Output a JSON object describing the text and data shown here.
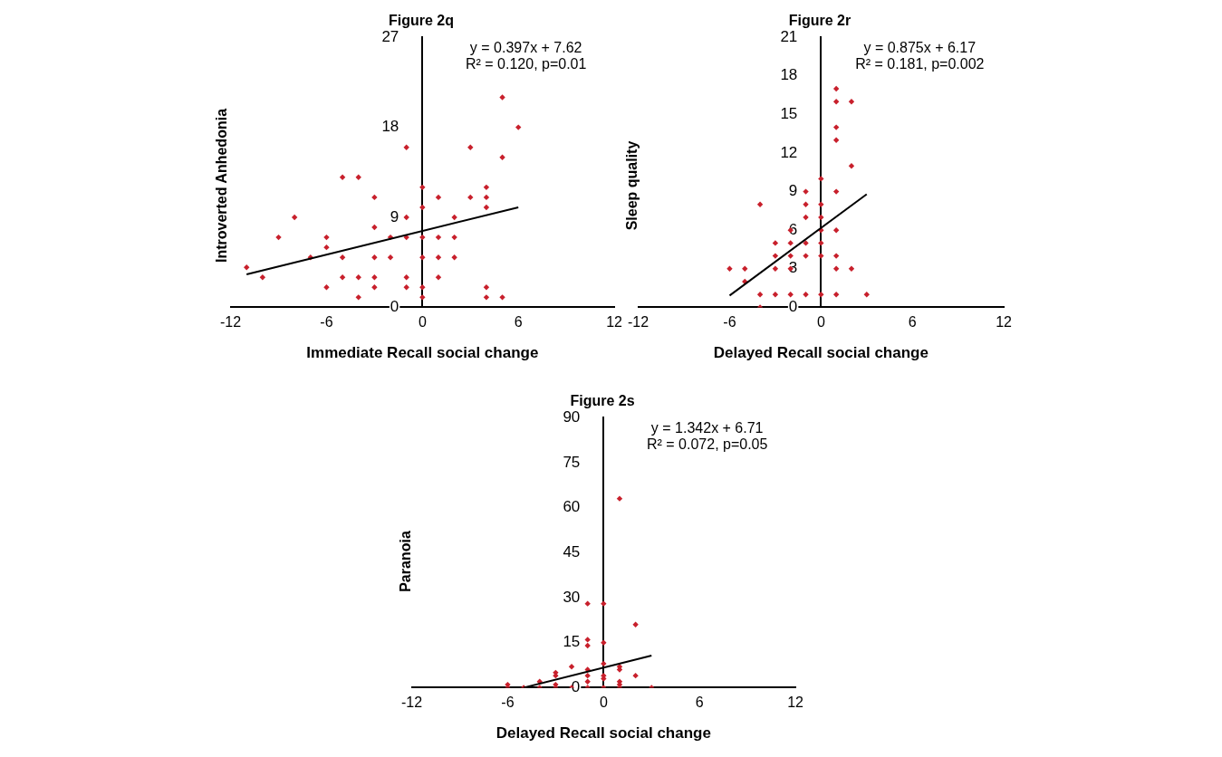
{
  "chart_data": [
    {
      "type": "scatter",
      "title": "Figure 2q",
      "xlabel": "Immediate Recall social change",
      "ylabel": "Introverted Anhedonia",
      "annotations": [
        "y = 0.397x + 7.62",
        "R² = 0.120, p=0.01"
      ],
      "xlim": [
        -12,
        12
      ],
      "xticks": [
        -12,
        -6,
        0,
        6,
        12
      ],
      "ylim": [
        0,
        27
      ],
      "yticks": [
        0,
        9,
        18,
        27
      ],
      "marker": "diamond",
      "series": [
        {
          "color": "#c8202c",
          "x": [
            -11,
            -10,
            -9,
            -8,
            -7,
            -6,
            -6,
            -6,
            -5,
            -5,
            -5,
            -4,
            -4,
            -4,
            -3,
            -3,
            -3,
            -3,
            -3,
            -2,
            -2,
            -1,
            -1,
            -1,
            -1,
            -1,
            0,
            0,
            0,
            0,
            0,
            0,
            1,
            1,
            1,
            1,
            2,
            2,
            2,
            3,
            3,
            4,
            4,
            4,
            4,
            4,
            5,
            5,
            5,
            6
          ],
          "values": [
            4,
            3,
            7,
            9,
            5,
            7,
            6,
            2,
            13,
            5,
            3,
            13,
            3,
            1,
            11,
            8,
            5,
            3,
            2,
            7,
            5,
            16,
            9,
            7,
            3,
            2,
            12,
            10,
            7,
            5,
            2,
            1,
            11,
            7,
            5,
            3,
            9,
            7,
            5,
            16,
            11,
            12,
            11,
            10,
            2,
            1,
            21,
            15,
            1,
            18
          ]
        },
        {
          "type": "line",
          "marker": "none",
          "color": "#000000",
          "x": [
            -11,
            6
          ],
          "values": [
            3.3,
            10.0
          ]
        }
      ]
    },
    {
      "type": "scatter",
      "title": "Figure 2r",
      "xlabel": "Delayed Recall social change",
      "ylabel": "Sleep quality",
      "annotations": [
        "y = 0.875x + 6.17",
        "R² = 0.181, p=0.002"
      ],
      "xlim": [
        -12,
        12
      ],
      "xticks": [
        -12,
        -6,
        0,
        6,
        12
      ],
      "ylim": [
        0,
        21
      ],
      "yticks": [
        0,
        3,
        6,
        9,
        12,
        15,
        18,
        21
      ],
      "marker": "diamond",
      "series": [
        {
          "color": "#c8202c",
          "x": [
            -6,
            -5,
            -5,
            -4,
            -4,
            -4,
            -3,
            -3,
            -3,
            -3,
            -2,
            -2,
            -2,
            -2,
            -2,
            -1,
            -1,
            -1,
            -1,
            -1,
            -1,
            0,
            0,
            0,
            0,
            0,
            0,
            0,
            1,
            1,
            1,
            1,
            1,
            1,
            1,
            1,
            1,
            2,
            2,
            2,
            3
          ],
          "values": [
            3,
            3,
            2,
            8,
            1,
            0,
            5,
            4,
            3,
            1,
            6,
            5,
            4,
            3,
            1,
            9,
            8,
            7,
            5,
            4,
            1,
            10,
            8,
            7,
            6,
            5,
            4,
            1,
            17,
            16,
            14,
            13,
            9,
            6,
            4,
            3,
            1,
            16,
            11,
            3,
            1
          ]
        },
        {
          "type": "line",
          "marker": "none",
          "color": "#000000",
          "x": [
            -6,
            3
          ],
          "values": [
            0.92,
            8.8
          ]
        }
      ]
    },
    {
      "type": "scatter",
      "title": "Figure 2s",
      "xlabel": "Delayed Recall social change",
      "ylabel": "Paranoia",
      "annotations": [
        "y = 1.342x + 6.71",
        "R² = 0.072, p=0.05"
      ],
      "xlim": [
        -12,
        12
      ],
      "xticks": [
        -12,
        -6,
        0,
        6,
        12
      ],
      "ylim": [
        0,
        90
      ],
      "yticks": [
        0,
        15,
        30,
        45,
        60,
        75,
        90
      ],
      "marker": "diamond",
      "series": [
        {
          "color": "#c8202c",
          "x": [
            -6,
            -6,
            -5,
            -4,
            -4,
            -3,
            -3,
            -3,
            -3,
            -2,
            -2,
            -1,
            -1,
            -1,
            -1,
            -1,
            -1,
            -1,
            0,
            0,
            0,
            0,
            0,
            0,
            1,
            1,
            1,
            1,
            1,
            1,
            2,
            2,
            3
          ],
          "values": [
            1,
            0,
            0,
            2,
            0,
            5,
            4,
            1,
            0,
            7,
            0,
            28,
            16,
            14,
            6,
            4,
            2,
            0,
            28,
            15,
            8,
            4,
            3,
            0,
            63,
            7,
            6,
            2,
            1,
            0,
            21,
            4,
            0
          ]
        },
        {
          "type": "line",
          "marker": "none",
          "color": "#000000",
          "x": [
            -5,
            3
          ],
          "values": [
            0.0,
            10.7
          ]
        }
      ]
    }
  ]
}
